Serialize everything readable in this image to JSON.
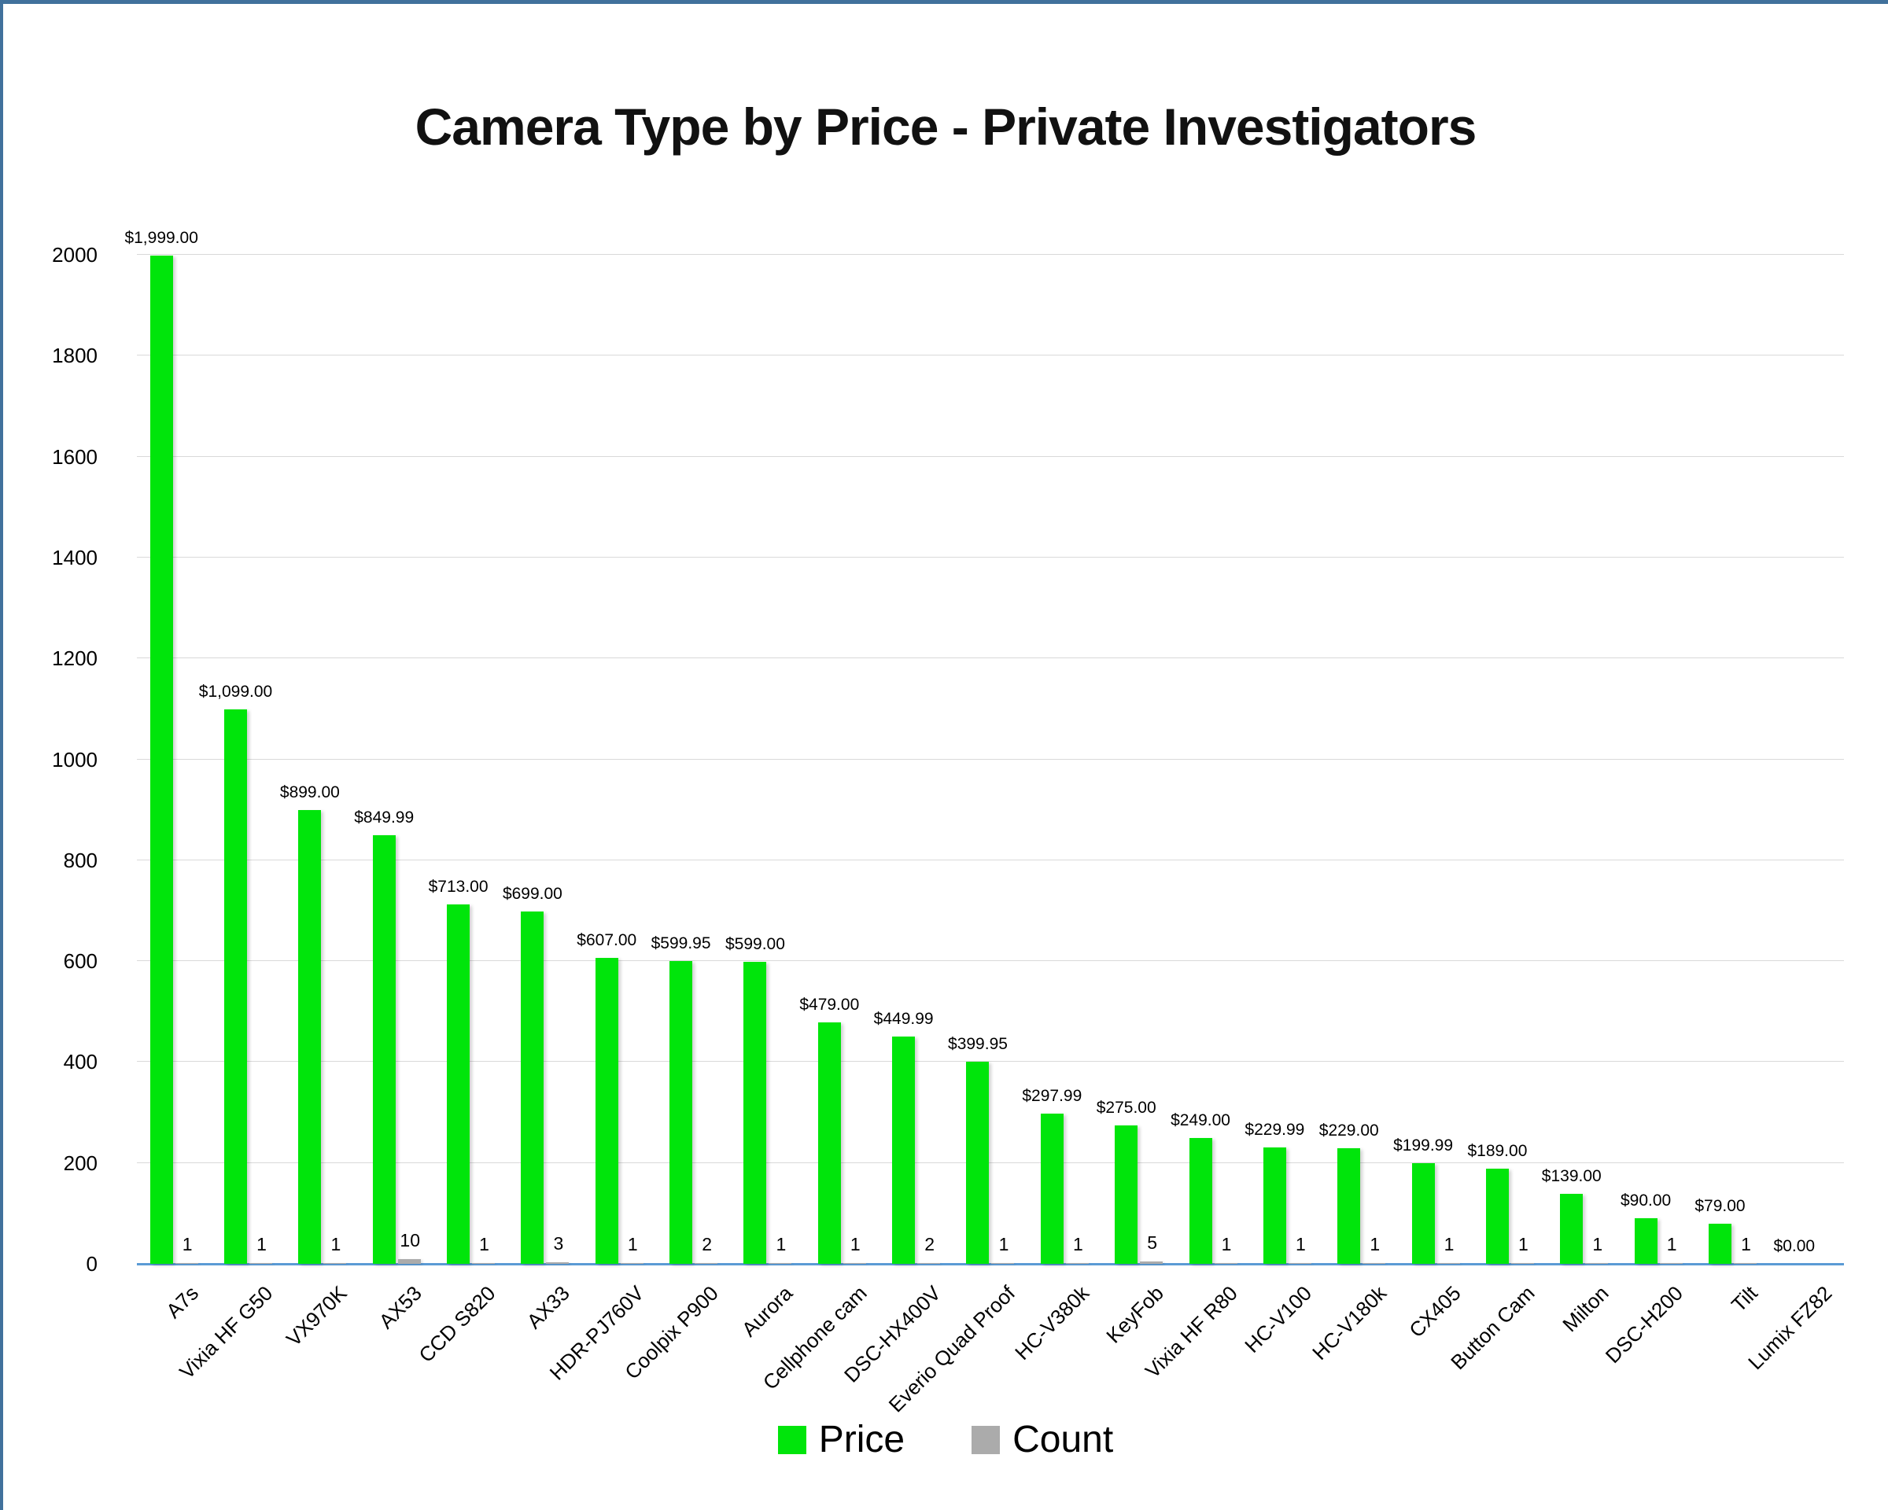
{
  "title": "Camera Type by Price - Private Investigators",
  "colors": {
    "price_green": "#00E50B",
    "count_gray": "#ABABAB",
    "gridline": "#D9D9D9",
    "axis_line_blue": "#5B9BD5",
    "frame_border_blue": "#41719C",
    "text": "#000000"
  },
  "legend": {
    "items": [
      {
        "label": "Price",
        "color": "#00E50B"
      },
      {
        "label": "Count",
        "color": "#ABABAB"
      }
    ],
    "position": "bottom"
  },
  "chart_data": {
    "type": "bar",
    "title": "Camera Type by Price - Private Investigators",
    "xlabel": "",
    "ylabel": "",
    "ylim": [
      0,
      2000
    ],
    "yticks": [
      0,
      200,
      400,
      600,
      800,
      1000,
      1200,
      1400,
      1600,
      1800,
      2000
    ],
    "grid": true,
    "legend_position": "bottom",
    "categories": [
      "A7s",
      "Vixia HF G50",
      "VX970K",
      "AX53",
      "CCD S820",
      "AX33",
      "HDR-PJ760V",
      "Coolpix P900",
      "Aurora",
      "Cellphone cam",
      "DSC-HX400V",
      "Everio Quad Proof",
      "HC-V380k",
      "KeyFob",
      "Vixia HF R80",
      "HC-V100",
      "HC-V180k",
      "CX405",
      "Button Cam",
      "Milton",
      "DSC-H200",
      "Tilt",
      "Lumix FZ82"
    ],
    "series": [
      {
        "name": "Price",
        "color": "#00E50B",
        "values": [
          1999,
          1099,
          899,
          849.99,
          713,
          699,
          607,
          599.95,
          599,
          479,
          449.99,
          399.95,
          297.99,
          275,
          249,
          229.99,
          229,
          199.99,
          189,
          139,
          90,
          79,
          0
        ],
        "labels": [
          "$1,999.00",
          "$1,099.00",
          "$899.00",
          "$849.99",
          "$713.00",
          "$699.00",
          "$607.00",
          "$599.95",
          "$599.00",
          "$479.00",
          "$449.99",
          "$399.95",
          "$297.99",
          "$275.00",
          "$249.00",
          "$229.99",
          "$229.00",
          "$199.99",
          "$189.00",
          "$139.00",
          "$90.00",
          "$79.00",
          "$0.00"
        ]
      },
      {
        "name": "Count",
        "color": "#ABABAB",
        "values": [
          1,
          1,
          1,
          10,
          1,
          3,
          1,
          2,
          1,
          1,
          2,
          1,
          1,
          5,
          1,
          1,
          1,
          1,
          1,
          1,
          1,
          1,
          null
        ],
        "labels": [
          "1",
          "1",
          "1",
          "10",
          "1",
          "3",
          "1",
          "2",
          "1",
          "1",
          "2",
          "1",
          "1",
          "5",
          "1",
          "1",
          "1",
          "1",
          "1",
          "1",
          "1",
          "1",
          ""
        ]
      }
    ]
  }
}
